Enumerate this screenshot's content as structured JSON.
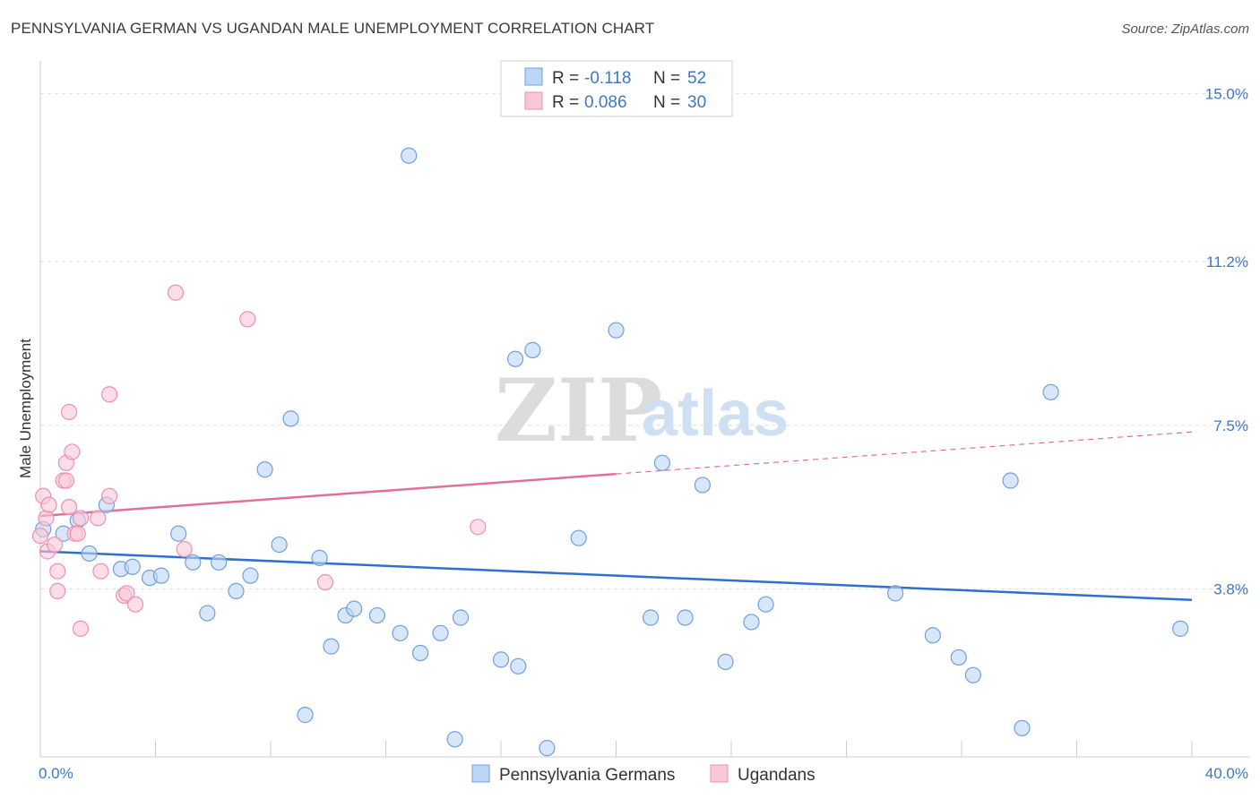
{
  "header": {
    "title": "PENNSYLVANIA GERMAN VS UGANDAN MALE UNEMPLOYMENT CORRELATION CHART",
    "source": "Source: ZipAtlas.com"
  },
  "watermark": {
    "zip": "ZIP",
    "atlas": "atlas"
  },
  "legend": {
    "r_label": "R =",
    "n_label": "N =",
    "rows": [
      {
        "r": "-0.118",
        "n": "52",
        "color": "#a9c8f0"
      },
      {
        "r": "0.086",
        "n": "30",
        "color": "#f7bcd0"
      }
    ]
  },
  "chart_data": {
    "type": "scatter",
    "ylabel": "Male Unemployment",
    "xlim": [
      0,
      40
    ],
    "ylim": [
      0,
      15.6
    ],
    "y_ticks": [
      {
        "value": 3.8,
        "label": "3.8%"
      },
      {
        "value": 7.5,
        "label": "7.5%"
      },
      {
        "value": 11.2,
        "label": "11.2%"
      },
      {
        "value": 15.0,
        "label": "15.0%"
      }
    ],
    "x_tick_labels": {
      "min": "0.0%",
      "max": "40.0%"
    },
    "series": [
      {
        "name": "Pennsylvania Germans",
        "color": "#6fa0e0",
        "fill": "#bcd6f5",
        "trend": {
          "x0": 0,
          "y0": 4.65,
          "x1": 40,
          "y1": 3.55,
          "solid_until": 40
        },
        "points": [
          [
            0.1,
            5.15
          ],
          [
            0.8,
            5.05
          ],
          [
            1.3,
            5.35
          ],
          [
            1.7,
            4.6
          ],
          [
            2.3,
            5.7
          ],
          [
            2.8,
            4.25
          ],
          [
            3.2,
            4.3
          ],
          [
            3.8,
            4.05
          ],
          [
            4.2,
            4.1
          ],
          [
            4.8,
            5.05
          ],
          [
            5.3,
            4.4
          ],
          [
            5.8,
            3.25
          ],
          [
            6.2,
            4.4
          ],
          [
            6.8,
            3.75
          ],
          [
            7.3,
            4.1
          ],
          [
            7.8,
            6.5
          ],
          [
            8.3,
            4.8
          ],
          [
            8.7,
            7.65
          ],
          [
            9.2,
            0.95
          ],
          [
            9.7,
            4.5
          ],
          [
            10.1,
            2.5
          ],
          [
            10.6,
            3.2
          ],
          [
            10.9,
            3.35
          ],
          [
            11.7,
            3.2
          ],
          [
            12.5,
            2.8
          ],
          [
            13.2,
            2.35
          ],
          [
            12.8,
            13.6
          ],
          [
            13.9,
            2.8
          ],
          [
            14.4,
            0.4
          ],
          [
            14.6,
            3.15
          ],
          [
            16.0,
            2.2
          ],
          [
            16.5,
            9.0
          ],
          [
            16.6,
            2.05
          ],
          [
            17.1,
            9.2
          ],
          [
            17.6,
            0.2
          ],
          [
            18.7,
            4.95
          ],
          [
            20.0,
            9.65
          ],
          [
            21.2,
            3.15
          ],
          [
            21.6,
            6.65
          ],
          [
            22.4,
            3.15
          ],
          [
            23.0,
            6.15
          ],
          [
            23.8,
            2.15
          ],
          [
            24.7,
            3.05
          ],
          [
            25.2,
            3.45
          ],
          [
            29.7,
            3.7
          ],
          [
            31.0,
            2.75
          ],
          [
            31.9,
            2.25
          ],
          [
            32.4,
            1.85
          ],
          [
            33.7,
            6.25
          ],
          [
            34.1,
            0.65
          ],
          [
            35.1,
            8.25
          ],
          [
            39.6,
            2.9
          ]
        ]
      },
      {
        "name": "Ugandans",
        "color": "#ee8fb0",
        "fill": "#f9c8d8",
        "trend": {
          "x0": 0,
          "y0": 5.45,
          "x1": 40,
          "y1": 7.35,
          "solid_until": 20
        },
        "points": [
          [
            0.1,
            5.9
          ],
          [
            0.2,
            5.4
          ],
          [
            0.25,
            4.65
          ],
          [
            0.3,
            5.7
          ],
          [
            0.5,
            4.8
          ],
          [
            0.6,
            3.75
          ],
          [
            0.6,
            4.2
          ],
          [
            0.8,
            6.25
          ],
          [
            0.9,
            6.25
          ],
          [
            0.9,
            6.65
          ],
          [
            1.0,
            5.65
          ],
          [
            1.0,
            7.8
          ],
          [
            1.1,
            6.9
          ],
          [
            1.2,
            5.05
          ],
          [
            1.3,
            5.05
          ],
          [
            1.4,
            5.4
          ],
          [
            1.4,
            2.9
          ],
          [
            2.0,
            5.4
          ],
          [
            2.1,
            4.2
          ],
          [
            2.4,
            8.2
          ],
          [
            2.4,
            5.9
          ],
          [
            2.9,
            3.65
          ],
          [
            3.0,
            3.7
          ],
          [
            3.3,
            3.45
          ],
          [
            4.7,
            10.5
          ],
          [
            5.0,
            4.7
          ],
          [
            7.2,
            9.9
          ],
          [
            9.9,
            3.95
          ],
          [
            15.2,
            5.2
          ],
          [
            0.0,
            5.0
          ]
        ]
      }
    ]
  }
}
